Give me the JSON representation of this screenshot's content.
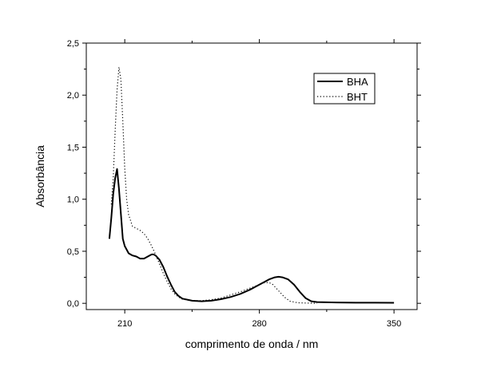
{
  "chart_data": {
    "type": "line",
    "title": "",
    "xlabel": "comprimento de onda / nm",
    "ylabel": "Absorbância",
    "xlim": [
      190,
      362
    ],
    "ylim": [
      -0.06,
      2.5
    ],
    "x_ticks": [
      210,
      280,
      350
    ],
    "y_ticks": [
      "0,0",
      "0,5",
      "1,0",
      "1,5",
      "2,0",
      "2,5"
    ],
    "y_tick_values": [
      0,
      0.5,
      1.0,
      1.5,
      2.0,
      2.5
    ],
    "grid": false,
    "legend_position": "top-right",
    "series": [
      {
        "name": "BHA",
        "style": "solid",
        "color": "#000000",
        "points": [
          [
            202,
            0.62
          ],
          [
            203,
            0.82
          ],
          [
            204,
            1.05
          ],
          [
            205,
            1.2
          ],
          [
            206,
            1.29
          ],
          [
            207,
            1.1
          ],
          [
            208,
            0.86
          ],
          [
            209,
            0.62
          ],
          [
            210,
            0.55
          ],
          [
            212,
            0.48
          ],
          [
            214,
            0.46
          ],
          [
            216,
            0.45
          ],
          [
            218,
            0.43
          ],
          [
            220,
            0.43
          ],
          [
            222,
            0.45
          ],
          [
            224,
            0.47
          ],
          [
            225,
            0.47
          ],
          [
            226,
            0.46
          ],
          [
            228,
            0.42
          ],
          [
            230,
            0.35
          ],
          [
            232,
            0.26
          ],
          [
            234,
            0.18
          ],
          [
            236,
            0.11
          ],
          [
            238,
            0.07
          ],
          [
            240,
            0.045
          ],
          [
            245,
            0.025
          ],
          [
            250,
            0.02
          ],
          [
            255,
            0.025
          ],
          [
            260,
            0.04
          ],
          [
            265,
            0.06
          ],
          [
            270,
            0.09
          ],
          [
            275,
            0.13
          ],
          [
            280,
            0.18
          ],
          [
            285,
            0.23
          ],
          [
            288,
            0.25
          ],
          [
            290,
            0.255
          ],
          [
            292,
            0.25
          ],
          [
            295,
            0.23
          ],
          [
            298,
            0.18
          ],
          [
            301,
            0.11
          ],
          [
            304,
            0.05
          ],
          [
            307,
            0.02
          ],
          [
            310,
            0.012
          ],
          [
            320,
            0.008
          ],
          [
            330,
            0.006
          ],
          [
            340,
            0.006
          ],
          [
            350,
            0.005
          ]
        ]
      },
      {
        "name": "BHT",
        "style": "dotted",
        "color": "#000000",
        "points": [
          [
            203,
            0.95
          ],
          [
            204,
            1.2
          ],
          [
            205,
            1.65
          ],
          [
            206,
            2.05
          ],
          [
            207,
            2.27
          ],
          [
            208,
            2.15
          ],
          [
            209,
            1.75
          ],
          [
            210,
            1.3
          ],
          [
            211,
            1.0
          ],
          [
            212,
            0.85
          ],
          [
            214,
            0.74
          ],
          [
            216,
            0.72
          ],
          [
            218,
            0.7
          ],
          [
            220,
            0.67
          ],
          [
            222,
            0.62
          ],
          [
            224,
            0.55
          ],
          [
            226,
            0.47
          ],
          [
            228,
            0.38
          ],
          [
            230,
            0.29
          ],
          [
            232,
            0.21
          ],
          [
            234,
            0.14
          ],
          [
            236,
            0.09
          ],
          [
            238,
            0.06
          ],
          [
            240,
            0.04
          ],
          [
            245,
            0.025
          ],
          [
            250,
            0.025
          ],
          [
            255,
            0.035
          ],
          [
            260,
            0.05
          ],
          [
            265,
            0.08
          ],
          [
            270,
            0.11
          ],
          [
            275,
            0.145
          ],
          [
            280,
            0.18
          ],
          [
            283,
            0.2
          ],
          [
            285,
            0.2
          ],
          [
            287,
            0.18
          ],
          [
            290,
            0.12
          ],
          [
            293,
            0.06
          ],
          [
            296,
            0.02
          ],
          [
            300,
            0.005
          ],
          [
            305,
            0.002
          ],
          [
            310,
            0.0
          ]
        ]
      }
    ]
  }
}
